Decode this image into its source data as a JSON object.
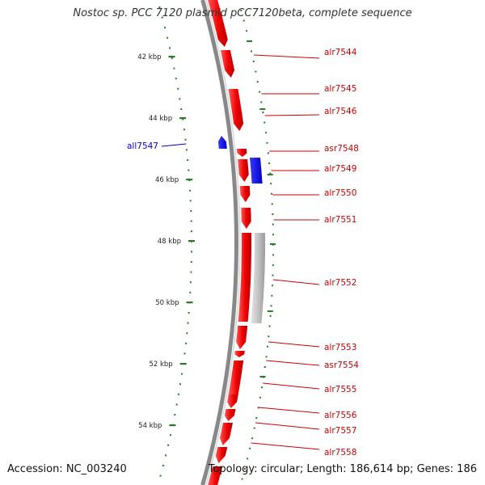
{
  "title": "Nostoc sp. PCC 7120 plasmid pCC7120beta, complete sequence",
  "footer": {
    "accession": "Accession: NC_003240",
    "summary": "Topology: circular; Length: 186,614 bp; Genes: 186"
  },
  "colors": {
    "forward_gene": "#ff0000",
    "reverse_gene": "#0000ff",
    "gray_feature": "#bdbdbd",
    "backbone": "#888888",
    "tick": "#2a7a2a",
    "forward_label": "#cc0000",
    "reverse_label": "#0000cc"
  },
  "scale_ticks": [
    {
      "label": "42 kbp",
      "kbp": 42
    },
    {
      "label": "44 kbp",
      "kbp": 44
    },
    {
      "label": "46 kbp",
      "kbp": 46
    },
    {
      "label": "48 kbp",
      "kbp": 48
    },
    {
      "label": "50 kbp",
      "kbp": 50
    },
    {
      "label": "52 kbp",
      "kbp": 52
    },
    {
      "label": "54 kbp",
      "kbp": 54
    }
  ],
  "forward_genes": [
    {
      "name": "alr7544"
    },
    {
      "name": "alr7545"
    },
    {
      "name": "alr7546"
    },
    {
      "name": "asr7548"
    },
    {
      "name": "alr7549"
    },
    {
      "name": "alr7550"
    },
    {
      "name": "alr7551"
    },
    {
      "name": "alr7552"
    },
    {
      "name": "alr7553"
    },
    {
      "name": "asr7554"
    },
    {
      "name": "alr7555"
    },
    {
      "name": "alr7556"
    },
    {
      "name": "alr7557"
    },
    {
      "name": "alr7558"
    }
  ],
  "reverse_genes": [
    {
      "name": "all7547"
    }
  ]
}
